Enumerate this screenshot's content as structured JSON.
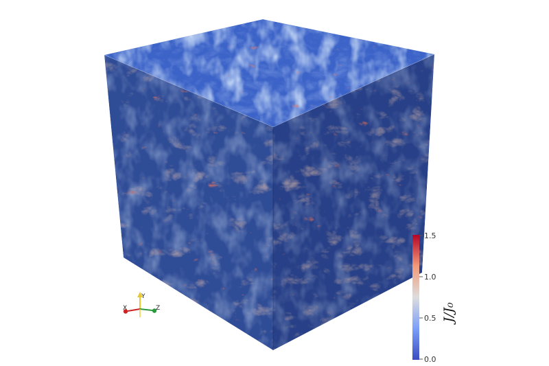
{
  "colorbar": {
    "ticks": [
      "1.5",
      "1.0",
      "0.5",
      "0.0"
    ],
    "title": "J/J₀",
    "min": 0.0,
    "max": 1.5,
    "colors": {
      "low": "#3b4cc0",
      "mid": "#dddddd",
      "high": "#b40426"
    }
  },
  "orientation_axes": {
    "x_label": "X",
    "y_label": "Y",
    "z_label": "Z",
    "colors": {
      "x": "#cc2222",
      "y": "#e8c830",
      "z": "#2a9a3a"
    }
  },
  "volume": {
    "colors": {
      "base": "#3a5cb8",
      "deep": "#213a8a",
      "light": "#7b9ee0",
      "warm": "#d59a7e",
      "hot": "#c43c2c"
    }
  }
}
